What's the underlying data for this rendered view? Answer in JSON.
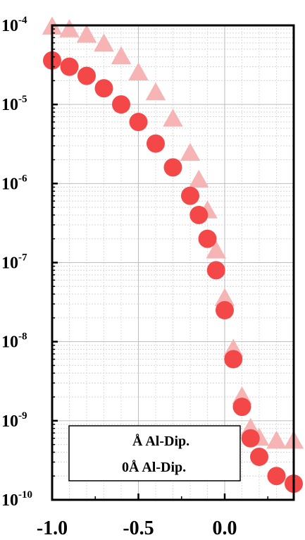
{
  "chart_data": {
    "type": "scatter",
    "title": "",
    "xlabel": "",
    "ylabel": "",
    "x_axis": {
      "scale": "linear",
      "range": [
        -1.0,
        0.4
      ],
      "ticks": [
        -1.0,
        -0.5,
        0.0
      ],
      "tick_labels": [
        "-1.0",
        "-0.5",
        "0.0"
      ]
    },
    "y_axis": {
      "scale": "log",
      "range": [
        1e-10,
        0.0001
      ],
      "tick_bases": [
        "10",
        "10",
        "10",
        "10",
        "10",
        "10",
        "10"
      ],
      "tick_exponents": [
        "-10",
        "-9",
        "-8",
        "-7",
        "-6",
        "-5",
        "-4"
      ]
    },
    "grid": true,
    "legend_position": "bottom-right",
    "legend": [
      "Å Al-Dip.",
      "0Å Al-Dip."
    ],
    "series": [
      {
        "marker": "triangle",
        "color": "#f7b4b4",
        "x": [
          -1.0,
          -0.9,
          -0.8,
          -0.7,
          -0.6,
          -0.5,
          -0.4,
          -0.3,
          -0.2,
          -0.15,
          -0.1,
          -0.05,
          0.0,
          0.05,
          0.1,
          0.15,
          0.2,
          0.3,
          0.4
        ],
        "y": [
          9.5e-05,
          8.8e-05,
          7.5e-05,
          5.8e-05,
          4e-05,
          2.5e-05,
          1.4e-05,
          6.5e-06,
          2.4e-06,
          1.1e-06,
          4.5e-07,
          1.4e-07,
          3.5e-08,
          8e-09,
          2e-09,
          8e-10,
          6e-10,
          5.5e-10,
          5.5e-10
        ]
      },
      {
        "marker": "circle",
        "color": "#f44848",
        "x": [
          -1.0,
          -0.9,
          -0.8,
          -0.7,
          -0.6,
          -0.5,
          -0.4,
          -0.3,
          -0.2,
          -0.15,
          -0.1,
          -0.05,
          0.0,
          0.05,
          0.1,
          0.15,
          0.2,
          0.3,
          0.4
        ],
        "y": [
          3.6e-05,
          3e-05,
          2.3e-05,
          1.6e-05,
          1e-05,
          6e-06,
          3.2e-06,
          1.6e-06,
          7e-07,
          4e-07,
          2e-07,
          8e-08,
          2.5e-08,
          6e-09,
          1.5e-09,
          6e-10,
          3.5e-10,
          2e-10,
          1.6e-10
        ]
      }
    ]
  }
}
